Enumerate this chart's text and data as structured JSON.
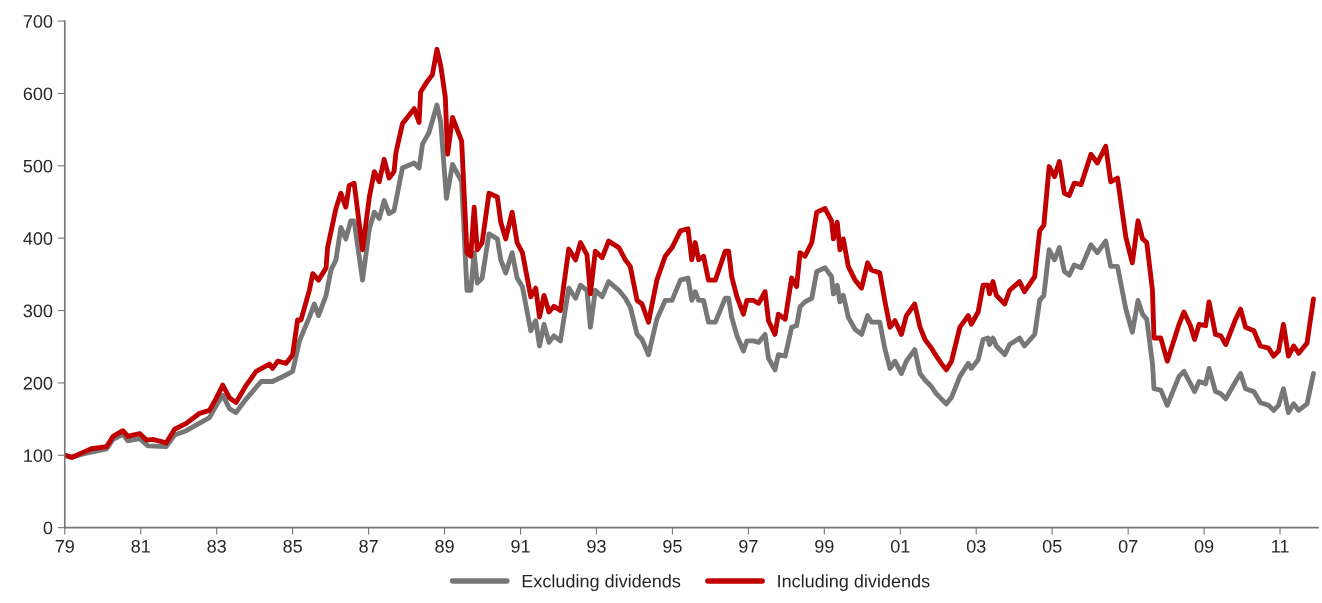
{
  "chart_data": {
    "type": "line",
    "xlim": [
      1979,
      2012
    ],
    "xticks": [
      {
        "value": 1979,
        "label": "79"
      },
      {
        "value": 1981,
        "label": "81"
      },
      {
        "value": 1983,
        "label": "83"
      },
      {
        "value": 1985,
        "label": "85"
      },
      {
        "value": 1987,
        "label": "87"
      },
      {
        "value": 1989,
        "label": "89"
      },
      {
        "value": 1991,
        "label": "91"
      },
      {
        "value": 1993,
        "label": "93"
      },
      {
        "value": 1995,
        "label": "95"
      },
      {
        "value": 1997,
        "label": "97"
      },
      {
        "value": 1999,
        "label": "99"
      },
      {
        "value": 2001,
        "label": "01"
      },
      {
        "value": 2003,
        "label": "03"
      },
      {
        "value": 2005,
        "label": "05"
      },
      {
        "value": 2007,
        "label": "07"
      },
      {
        "value": 2009,
        "label": "09"
      },
      {
        "value": 2011,
        "label": "11"
      }
    ],
    "ylim": [
      0,
      700
    ],
    "yticks": [
      0,
      100,
      200,
      300,
      400,
      500,
      600,
      700
    ],
    "grid": false,
    "legend": "bottom",
    "marker": "none",
    "line_style": "solid",
    "series": [
      {
        "name": "Excluding dividends",
        "color": "#777777",
        "x": [
          1979.0,
          1979.18,
          1979.48,
          1980.1,
          1980.27,
          1980.53,
          1980.66,
          1980.97,
          1981.19,
          1981.67,
          1981.89,
          1982.2,
          1982.81,
          1982.99,
          1983.16,
          1983.34,
          1983.51,
          1983.78,
          1984.17,
          1984.47,
          1984.83,
          1985.0,
          1985.18,
          1985.44,
          1985.57,
          1985.68,
          1985.88,
          1986.01,
          1986.14,
          1986.27,
          1986.4,
          1986.53,
          1986.62,
          1986.84,
          1987.02,
          1987.15,
          1987.28,
          1987.41,
          1987.54,
          1987.67,
          1987.89,
          1988.2,
          1988.33,
          1988.42,
          1988.59,
          1988.8,
          1988.9,
          1989.05,
          1989.21,
          1989.45,
          1989.59,
          1989.69,
          1989.78,
          1989.86,
          1989.99,
          1990.17,
          1990.39,
          1990.48,
          1990.61,
          1990.78,
          1990.91,
          1991.05,
          1991.27,
          1991.4,
          1991.5,
          1991.62,
          1991.75,
          1991.88,
          1992.05,
          1992.27,
          1992.45,
          1992.58,
          1992.75,
          1992.84,
          1992.97,
          1993.15,
          1993.32,
          1993.59,
          1993.76,
          1993.89,
          1994.07,
          1994.2,
          1994.37,
          1994.59,
          1994.81,
          1994.99,
          1995.21,
          1995.41,
          1995.51,
          1995.6,
          1995.69,
          1995.82,
          1995.95,
          1996.13,
          1996.39,
          1996.48,
          1996.56,
          1996.7,
          1996.87,
          1996.96,
          1997.13,
          1997.27,
          1997.44,
          1997.53,
          1997.7,
          1997.79,
          1997.97,
          1998.14,
          1998.27,
          1998.36,
          1998.49,
          1998.67,
          1998.8,
          1999.02,
          1999.19,
          1999.24,
          1999.34,
          1999.41,
          1999.5,
          1999.63,
          1999.81,
          1999.98,
          2000.14,
          2000.24,
          2000.46,
          2000.59,
          2000.73,
          2000.86,
          2001.03,
          2001.16,
          2001.38,
          2001.52,
          2001.65,
          2001.82,
          2001.95,
          2002.08,
          2002.21,
          2002.35,
          2002.57,
          2002.79,
          2002.87,
          2003.05,
          2003.18,
          2003.31,
          2003.35,
          2003.44,
          2003.53,
          2003.75,
          2003.88,
          2004.14,
          2004.27,
          2004.54,
          2004.67,
          2004.78,
          2004.92,
          2005.06,
          2005.19,
          2005.32,
          2005.45,
          2005.58,
          2005.76,
          2006.02,
          2006.19,
          2006.41,
          2006.54,
          2006.72,
          2006.94,
          2007.11,
          2007.26,
          2007.38,
          2007.49,
          2007.64,
          2007.68,
          2007.86,
          2008.03,
          2008.34,
          2008.47,
          2008.64,
          2008.75,
          2008.87,
          2009.04,
          2009.13,
          2009.3,
          2009.44,
          2009.57,
          2009.83,
          2009.96,
          2010.09,
          2010.31,
          2010.48,
          2010.7,
          2010.83,
          2010.96,
          2011.09,
          2011.22,
          2011.36,
          2011.49,
          2011.71,
          2011.88
        ],
        "values": [
          100,
          97,
          102,
          109,
          122,
          129,
          120,
          123,
          113,
          112,
          128,
          134,
          152,
          169,
          183,
          164,
          159,
          178,
          202,
          202,
          211,
          216,
          258,
          291,
          309,
          293,
          321,
          356,
          370,
          415,
          399,
          424,
          424,
          342,
          413,
          436,
          427,
          452,
          434,
          438,
          497,
          504,
          497,
          530,
          546,
          584,
          560,
          455,
          502,
          478,
          328,
          328,
          380,
          338,
          345,
          406,
          399,
          370,
          352,
          380,
          345,
          333,
          272,
          286,
          251,
          281,
          256,
          265,
          258,
          331,
          317,
          335,
          328,
          277,
          328,
          319,
          340,
          328,
          317,
          305,
          267,
          260,
          239,
          288,
          314,
          314,
          342,
          345,
          314,
          326,
          314,
          314,
          284,
          284,
          317,
          317,
          291,
          265,
          244,
          258,
          258,
          256,
          267,
          234,
          218,
          239,
          237,
          277,
          279,
          305,
          312,
          317,
          354,
          359,
          347,
          323,
          335,
          312,
          321,
          291,
          274,
          267,
          293,
          284,
          284,
          248,
          220,
          230,
          213,
          230,
          246,
          213,
          204,
          195,
          185,
          178,
          171,
          180,
          209,
          227,
          220,
          232,
          260,
          262,
          253,
          262,
          251,
          239,
          253,
          262,
          251,
          267,
          314,
          321,
          384,
          370,
          387,
          354,
          349,
          363,
          359,
          391,
          380,
          396,
          361,
          361,
          302,
          270,
          314,
          295,
          288,
          227,
          192,
          190,
          169,
          209,
          216,
          199,
          188,
          202,
          199,
          220,
          188,
          185,
          178,
          202,
          213,
          192,
          188,
          173,
          169,
          162,
          169,
          192,
          159,
          171,
          162,
          171,
          213
        ]
      },
      {
        "name": "Including dividends",
        "color": "#c00000",
        "x": [
          1979.0,
          1979.18,
          1979.48,
          1979.7,
          1980.1,
          1980.27,
          1980.53,
          1980.66,
          1980.97,
          1981.15,
          1981.32,
          1981.67,
          1981.89,
          1982.2,
          1982.55,
          1982.81,
          1982.99,
          1983.16,
          1983.34,
          1983.51,
          1983.78,
          1984.04,
          1984.39,
          1984.47,
          1984.61,
          1984.83,
          1985.0,
          1985.13,
          1985.22,
          1985.44,
          1985.53,
          1985.68,
          1985.88,
          1985.92,
          1986.14,
          1986.27,
          1986.4,
          1986.49,
          1986.62,
          1986.84,
          1987.02,
          1987.15,
          1987.28,
          1987.41,
          1987.54,
          1987.67,
          1987.72,
          1987.89,
          1988.2,
          1988.33,
          1988.37,
          1988.55,
          1988.68,
          1988.8,
          1988.9,
          1989.02,
          1989.08,
          1989.21,
          1989.45,
          1989.59,
          1989.69,
          1989.78,
          1989.86,
          1989.99,
          1990.17,
          1990.39,
          1990.48,
          1990.61,
          1990.78,
          1990.91,
          1991.05,
          1991.27,
          1991.4,
          1991.5,
          1991.62,
          1991.75,
          1991.88,
          1992.05,
          1992.27,
          1992.45,
          1992.58,
          1992.75,
          1992.84,
          1992.97,
          1993.15,
          1993.32,
          1993.59,
          1993.76,
          1993.89,
          1994.07,
          1994.2,
          1994.37,
          1994.59,
          1994.81,
          1994.99,
          1995.21,
          1995.41,
          1995.51,
          1995.6,
          1995.69,
          1995.82,
          1995.95,
          1996.13,
          1996.39,
          1996.48,
          1996.56,
          1996.7,
          1996.87,
          1996.96,
          1997.13,
          1997.27,
          1997.44,
          1997.53,
          1997.7,
          1997.79,
          1997.97,
          1998.14,
          1998.27,
          1998.36,
          1998.49,
          1998.67,
          1998.8,
          1999.02,
          1999.19,
          1999.24,
          1999.34,
          1999.41,
          1999.5,
          1999.63,
          1999.81,
          1999.98,
          2000.14,
          2000.24,
          2000.46,
          2000.59,
          2000.73,
          2000.86,
          2001.03,
          2001.16,
          2001.38,
          2001.52,
          2001.65,
          2001.82,
          2001.95,
          2002.08,
          2002.21,
          2002.35,
          2002.57,
          2002.79,
          2002.87,
          2003.05,
          2003.18,
          2003.31,
          2003.35,
          2003.44,
          2003.53,
          2003.75,
          2003.88,
          2004.14,
          2004.27,
          2004.54,
          2004.67,
          2004.78,
          2004.92,
          2005.06,
          2005.19,
          2005.32,
          2005.45,
          2005.58,
          2005.76,
          2006.02,
          2006.19,
          2006.41,
          2006.54,
          2006.72,
          2006.94,
          2007.11,
          2007.26,
          2007.38,
          2007.49,
          2007.64,
          2007.68,
          2007.86,
          2008.03,
          2008.34,
          2008.47,
          2008.64,
          2008.75,
          2008.87,
          2009.04,
          2009.13,
          2009.3,
          2009.44,
          2009.57,
          2009.83,
          2009.96,
          2010.09,
          2010.31,
          2010.48,
          2010.7,
          2010.83,
          2010.96,
          2011.09,
          2011.22,
          2011.36,
          2011.49,
          2011.71,
          2011.88
        ],
        "values": [
          100,
          97,
          104,
          109,
          112,
          126,
          134,
          126,
          130,
          121,
          122,
          117,
          136,
          144,
          158,
          162,
          179,
          197,
          179,
          173,
          197,
          216,
          226,
          220,
          230,
          227,
          239,
          287,
          287,
          328,
          351,
          342,
          359,
          387,
          441,
          462,
          443,
          473,
          476,
          384,
          457,
          492,
          478,
          509,
          483,
          492,
          518,
          558,
          579,
          560,
          602,
          617,
          626,
          661,
          638,
          595,
          516,
          567,
          534,
          380,
          375,
          443,
          384,
          394,
          462,
          457,
          422,
          399,
          436,
          394,
          380,
          319,
          331,
          291,
          321,
          298,
          306,
          300,
          385,
          370,
          394,
          377,
          323,
          382,
          373,
          396,
          387,
          370,
          361,
          314,
          309,
          284,
          342,
          375,
          387,
          410,
          413,
          370,
          394,
          370,
          375,
          342,
          342,
          382,
          382,
          347,
          319,
          295,
          314,
          314,
          310,
          326,
          286,
          267,
          295,
          288,
          345,
          333,
          380,
          375,
          394,
          436,
          441,
          424,
          399,
          422,
          384,
          399,
          361,
          342,
          331,
          366,
          356,
          352,
          314,
          277,
          286,
          267,
          293,
          309,
          277,
          260,
          248,
          237,
          227,
          218,
          230,
          277,
          293,
          281,
          298,
          335,
          335,
          323,
          340,
          321,
          309,
          328,
          340,
          326,
          347,
          410,
          418,
          499,
          485,
          506,
          462,
          459,
          476,
          474,
          516,
          504,
          527,
          478,
          483,
          401,
          366,
          424,
          399,
          394,
          328,
          262,
          262,
          230,
          281,
          298,
          279,
          260,
          281,
          279,
          312,
          267,
          265,
          253,
          288,
          302,
          277,
          272,
          251,
          248,
          237,
          244,
          281,
          237,
          251,
          241,
          255,
          316
        ]
      }
    ]
  }
}
